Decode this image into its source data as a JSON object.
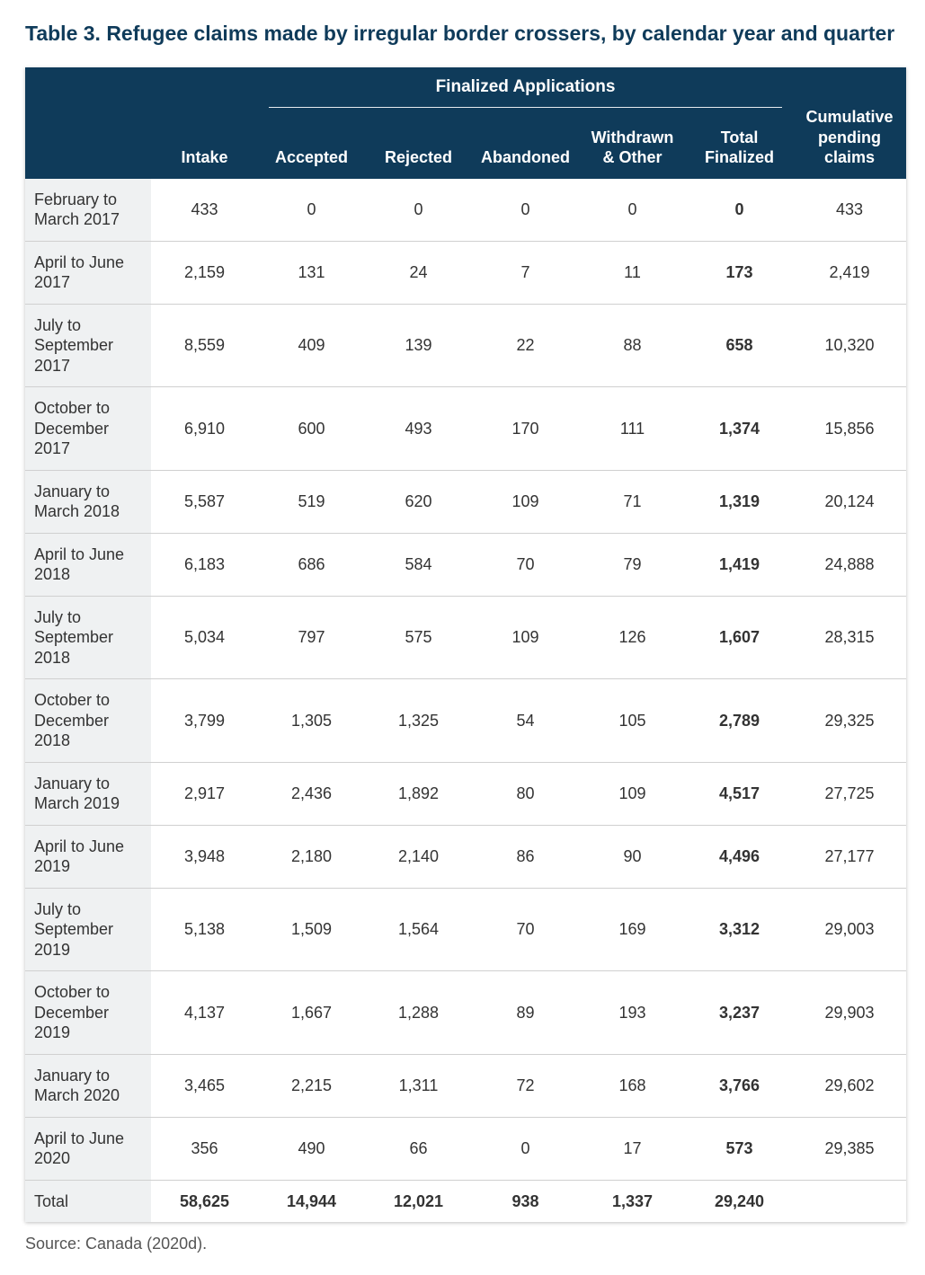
{
  "title": "Table 3. Refugee claims made by irregular border crossers, by calendar year and quarter",
  "colors": {
    "header_bg": "#0f3b5a",
    "header_text": "#ffffff",
    "row_label_bg": "#eff1f2",
    "border": "#d0d0d0",
    "title": "#0f3b5a"
  },
  "header": {
    "spanner": "Finalized Applications",
    "intake": "Intake",
    "accepted": "Accepted",
    "rejected": "Rejected",
    "abandoned": "Abandoned",
    "withdrawn": "Withdrawn & Other",
    "total_fin": "Total Finalized",
    "pending": "Cumulative pending claims"
  },
  "rows": [
    {
      "label": "February to March 2017",
      "intake": "433",
      "accepted": "0",
      "rejected": "0",
      "abandoned": "0",
      "withdrawn": "0",
      "total": "0",
      "pending": "433"
    },
    {
      "label": "April to June 2017",
      "intake": "2,159",
      "accepted": "131",
      "rejected": "24",
      "abandoned": "7",
      "withdrawn": "11",
      "total": "173",
      "pending": "2,419"
    },
    {
      "label": "July to September 2017",
      "intake": "8,559",
      "accepted": "409",
      "rejected": "139",
      "abandoned": "22",
      "withdrawn": "88",
      "total": "658",
      "pending": "10,320"
    },
    {
      "label": "October to December 2017",
      "intake": "6,910",
      "accepted": "600",
      "rejected": "493",
      "abandoned": "170",
      "withdrawn": "111",
      "total": "1,374",
      "pending": "15,856"
    },
    {
      "label": "January to March 2018",
      "intake": "5,587",
      "accepted": "519",
      "rejected": "620",
      "abandoned": "109",
      "withdrawn": "71",
      "total": "1,319",
      "pending": "20,124"
    },
    {
      "label": "April to June 2018",
      "intake": "6,183",
      "accepted": "686",
      "rejected": "584",
      "abandoned": "70",
      "withdrawn": "79",
      "total": "1,419",
      "pending": "24,888"
    },
    {
      "label": "July to September 2018",
      "intake": "5,034",
      "accepted": "797",
      "rejected": "575",
      "abandoned": "109",
      "withdrawn": "126",
      "total": "1,607",
      "pending": "28,315"
    },
    {
      "label": "October to December 2018",
      "intake": "3,799",
      "accepted": "1,305",
      "rejected": "1,325",
      "abandoned": "54",
      "withdrawn": "105",
      "total": "2,789",
      "pending": "29,325"
    },
    {
      "label": "January to March 2019",
      "intake": "2,917",
      "accepted": "2,436",
      "rejected": "1,892",
      "abandoned": "80",
      "withdrawn": "109",
      "total": "4,517",
      "pending": "27,725"
    },
    {
      "label": "April to June 2019",
      "intake": "3,948",
      "accepted": "2,180",
      "rejected": "2,140",
      "abandoned": "86",
      "withdrawn": "90",
      "total": "4,496",
      "pending": "27,177"
    },
    {
      "label": "July to September 2019",
      "intake": "5,138",
      "accepted": "1,509",
      "rejected": "1,564",
      "abandoned": "70",
      "withdrawn": "169",
      "total": "3,312",
      "pending": "29,003"
    },
    {
      "label": "October to December 2019",
      "intake": "4,137",
      "accepted": "1,667",
      "rejected": "1,288",
      "abandoned": "89",
      "withdrawn": "193",
      "total": "3,237",
      "pending": "29,903"
    },
    {
      "label": "January to March 2020",
      "intake": "3,465",
      "accepted": "2,215",
      "rejected": "1,311",
      "abandoned": "72",
      "withdrawn": "168",
      "total": "3,766",
      "pending": "29,602"
    },
    {
      "label": "April to June 2020",
      "intake": "356",
      "accepted": "490",
      "rejected": "66",
      "abandoned": "0",
      "withdrawn": "17",
      "total": "573",
      "pending": "29,385"
    }
  ],
  "total_row": {
    "label": "Total",
    "intake": "58,625",
    "accepted": "14,944",
    "rejected": "12,021",
    "abandoned": "938",
    "withdrawn": "1,337",
    "total": "29,240",
    "pending": ""
  },
  "source": "Source: Canada (2020d)."
}
